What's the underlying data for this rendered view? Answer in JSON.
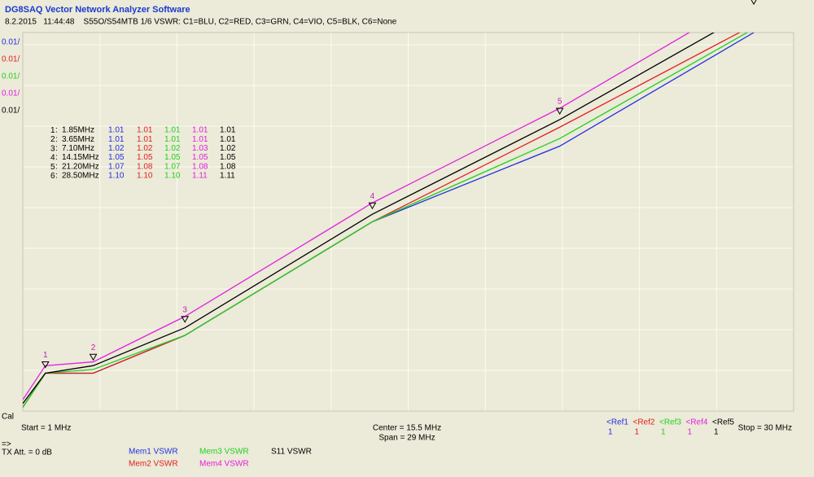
{
  "header": {
    "title": "DG8SAQ Vector Network Analyzer Software",
    "subtitle": "8.2.2015   11:44:48    S55O/S54MTB 1/6 VSWR: C1=BLU, C2=RED, C3=GRN, C4=VIO, C5=BLK, C6=None"
  },
  "scale_labels": [
    {
      "text": "0.01/",
      "color": "#2030e0"
    },
    {
      "text": "0.01/",
      "color": "#e02020"
    },
    {
      "text": "0.01/",
      "color": "#20d020"
    },
    {
      "text": "0.01/",
      "color": "#e020e0"
    },
    {
      "text": "0.01/",
      "color": "#000000"
    }
  ],
  "cal": "Cal",
  "markers": {
    "rows": [
      {
        "id": "1",
        "freq": "1.85MHz",
        "values": [
          "1.01",
          "1.01",
          "1.01",
          "1.01",
          "1.01"
        ]
      },
      {
        "id": "2",
        "freq": "3.65MHz",
        "values": [
          "1.01",
          "1.01",
          "1.01",
          "1.01",
          "1.01"
        ]
      },
      {
        "id": "3",
        "freq": "7.10MHz",
        "values": [
          "1.02",
          "1.02",
          "1.02",
          "1.03",
          "1.02"
        ]
      },
      {
        "id": "4",
        "freq": "14.15MHz",
        "values": [
          "1.05",
          "1.05",
          "1.05",
          "1.05",
          "1.05"
        ]
      },
      {
        "id": "5",
        "freq": "21.20MHz",
        "values": [
          "1.07",
          "1.08",
          "1.07",
          "1.08",
          "1.08"
        ]
      },
      {
        "id": "6",
        "freq": "28.50MHz",
        "values": [
          "1.10",
          "1.10",
          "1.10",
          "1.11",
          "1.11"
        ]
      }
    ]
  },
  "chart_data": {
    "type": "line",
    "xlim": [
      1,
      30
    ],
    "ylim": [
      1.0,
      1.1
    ],
    "x": [
      1,
      1.85,
      3.65,
      7.1,
      14.15,
      21.2,
      28.5
    ],
    "series": [
      {
        "name": "Mem1 VSWR",
        "color": "#2030e0",
        "values": [
          1.001,
          1.01,
          1.01,
          1.02,
          1.05,
          1.07,
          1.1
        ]
      },
      {
        "name": "Mem2 VSWR",
        "color": "#e02020",
        "values": [
          1.001,
          1.01,
          1.01,
          1.02,
          1.05,
          1.075,
          1.102
        ]
      },
      {
        "name": "Mem3 VSWR",
        "color": "#20d020",
        "values": [
          1.001,
          1.01,
          1.011,
          1.02,
          1.05,
          1.072,
          1.101
        ]
      },
      {
        "name": "Mem4 VSWR",
        "color": "#e020e0",
        "values": [
          1.003,
          1.012,
          1.013,
          1.025,
          1.055,
          1.08,
          1.11
        ]
      },
      {
        "name": "S11 VSWR",
        "color": "#000000",
        "values": [
          1.002,
          1.01,
          1.012,
          1.022,
          1.052,
          1.077,
          1.106
        ]
      }
    ]
  },
  "footer": {
    "start": "Start = 1 MHz",
    "center": "Center = 15.5 MHz",
    "span": "Span = 29 MHz",
    "stop": "Stop = 30 MHz",
    "arrow": "=>",
    "tx_att": "TX Att. = 0 dB",
    "refs": [
      {
        "label": "<Ref1",
        "value": "1"
      },
      {
        "label": "<Ref2",
        "value": "1"
      },
      {
        "label": "<Ref3",
        "value": "1"
      },
      {
        "label": "<Ref4",
        "value": "1"
      },
      {
        "label": "<Ref5",
        "value": "1"
      }
    ]
  }
}
